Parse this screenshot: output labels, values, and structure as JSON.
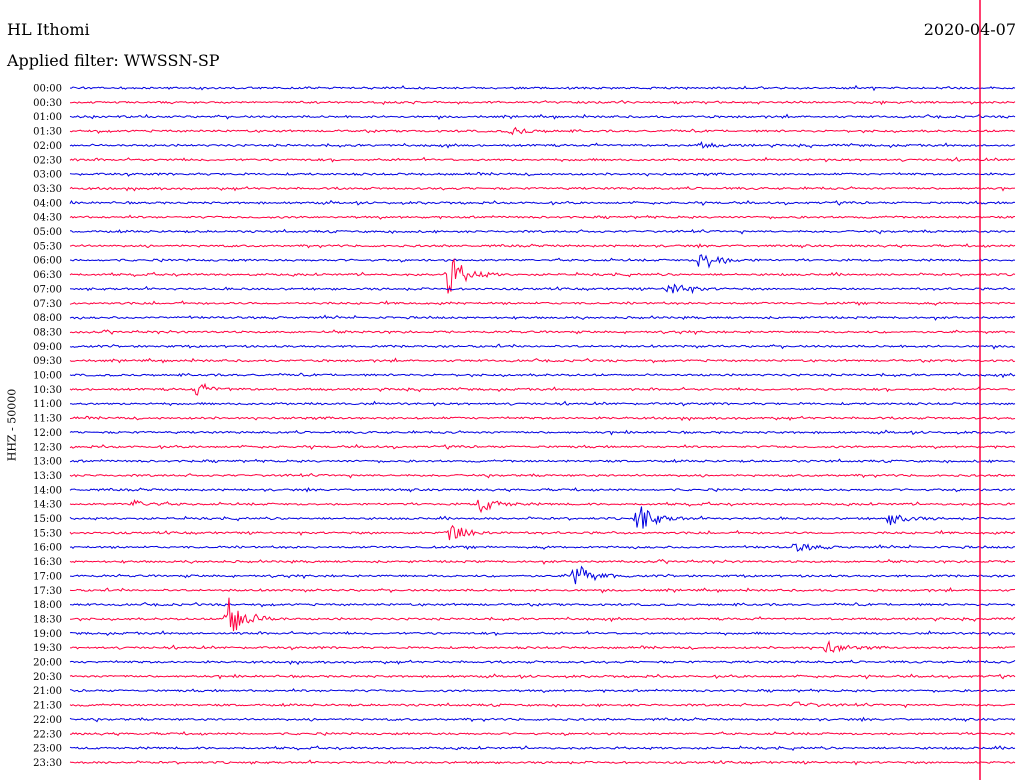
{
  "header": {
    "station": "HL Ithomi",
    "filter": "Applied filter: WWSSN-SP",
    "date": "2020-04-07"
  },
  "colors": {
    "line_a": "#0000e0",
    "line_b": "#ff0040",
    "marker": "#ff0040"
  },
  "chart_data": {
    "type": "line",
    "title": "HL Ithomi",
    "subtitle": "Applied filter: WWSSN-SP",
    "ylabel": "HHZ - 50000",
    "rows": [
      "00:00",
      "00:30",
      "01:00",
      "01:30",
      "02:00",
      "02:30",
      "03:00",
      "03:30",
      "04:00",
      "04:30",
      "05:00",
      "05:30",
      "06:00",
      "06:30",
      "07:00",
      "07:30",
      "08:00",
      "08:30",
      "09:00",
      "09:30",
      "10:00",
      "10:30",
      "11:00",
      "11:30",
      "12:00",
      "12:30",
      "13:00",
      "13:30",
      "14:00",
      "14:30",
      "15:00",
      "15:30",
      "16:00",
      "16:30",
      "17:00",
      "17:30",
      "18:00",
      "18:30",
      "19:00",
      "19:30",
      "20:00",
      "20:30",
      "21:00",
      "21:30",
      "22:00",
      "22:30",
      "23:00",
      "23:30"
    ],
    "x_minutes_per_row": 30,
    "events": [
      {
        "row": "01:30",
        "minute": 14,
        "amp": 0.5
      },
      {
        "row": "02:00",
        "minute": 20,
        "amp": 0.3
      },
      {
        "row": "06:00",
        "minute": 20,
        "amp": 1.6
      },
      {
        "row": "06:30",
        "minute": 12,
        "amp": 2.6
      },
      {
        "row": "07:00",
        "minute": 19,
        "amp": 1.0
      },
      {
        "row": "10:30",
        "minute": 4,
        "amp": 0.7
      },
      {
        "row": "14:30",
        "minute": 2,
        "amp": 0.5
      },
      {
        "row": "14:30",
        "minute": 13,
        "amp": 1.0
      },
      {
        "row": "15:00",
        "minute": 18,
        "amp": 2.0
      },
      {
        "row": "15:00",
        "minute": 26,
        "amp": 0.8
      },
      {
        "row": "15:30",
        "minute": 12,
        "amp": 1.5
      },
      {
        "row": "16:00",
        "minute": 23,
        "amp": 0.6
      },
      {
        "row": "17:00",
        "minute": 16,
        "amp": 1.8
      },
      {
        "row": "18:30",
        "minute": 5,
        "amp": 3.2
      },
      {
        "row": "19:30",
        "minute": 24,
        "amp": 0.8
      },
      {
        "row": "21:30",
        "minute": 23,
        "amp": 0.4
      }
    ]
  }
}
